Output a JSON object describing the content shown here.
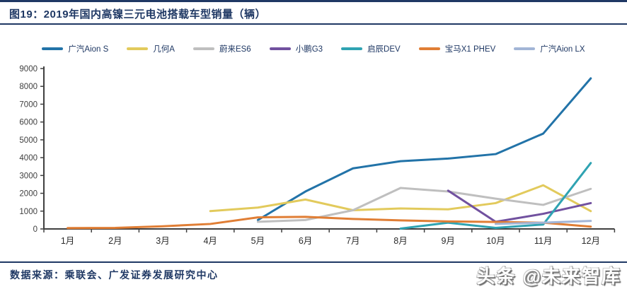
{
  "header": {
    "title": "图19：2019年国内高镍三元电池搭载车型销量（辆）"
  },
  "footer": {
    "source": "数据来源：乘联会、广发证券发展研究中心",
    "watermark": "头条 @未来智库"
  },
  "colors": {
    "accent_navy": "#1f3864",
    "axis": "#404040",
    "background": "#ffffff"
  },
  "chart_data": {
    "type": "line",
    "title": "2019年国内高镍三元电池搭载车型销量（辆）",
    "xlabel": "",
    "ylabel": "",
    "ylim": [
      0,
      9000
    ],
    "ytick_step": 1000,
    "grid": false,
    "legend_position": "top",
    "categories": [
      "1月",
      "2月",
      "3月",
      "4月",
      "5月",
      "6月",
      "7月",
      "8月",
      "9月",
      "10月",
      "11月",
      "12月"
    ],
    "series": [
      {
        "name": "广汽Aion S",
        "color": "#2273a8",
        "values": [
          null,
          null,
          null,
          null,
          500,
          2100,
          3400,
          3800,
          3950,
          4200,
          5350,
          8450
        ]
      },
      {
        "name": "几何A",
        "color": "#e2ca5c",
        "values": [
          null,
          null,
          null,
          1000,
          1200,
          1650,
          1050,
          1150,
          1100,
          1450,
          2450,
          1000
        ]
      },
      {
        "name": "蔚来ES6",
        "color": "#bfbfbf",
        "values": [
          null,
          null,
          null,
          null,
          400,
          500,
          1050,
          2300,
          2100,
          1700,
          1350,
          2250
        ]
      },
      {
        "name": "小鹏G3",
        "color": "#71519f",
        "values": [
          null,
          null,
          null,
          null,
          null,
          null,
          null,
          null,
          2150,
          400,
          850,
          1450
        ]
      },
      {
        "name": "启辰DEV",
        "color": "#2fa3b2",
        "values": [
          null,
          null,
          null,
          null,
          null,
          null,
          null,
          20,
          350,
          60,
          250,
          3700
        ]
      },
      {
        "name": "宝马X1 PHEV",
        "color": "#e07e35",
        "values": [
          50,
          60,
          150,
          280,
          650,
          680,
          560,
          480,
          420,
          390,
          350,
          130
        ]
      },
      {
        "name": "广汽Aion LX",
        "color": "#a2b5d6",
        "values": [
          null,
          null,
          null,
          null,
          null,
          null,
          null,
          null,
          null,
          280,
          350,
          450
        ]
      }
    ]
  }
}
